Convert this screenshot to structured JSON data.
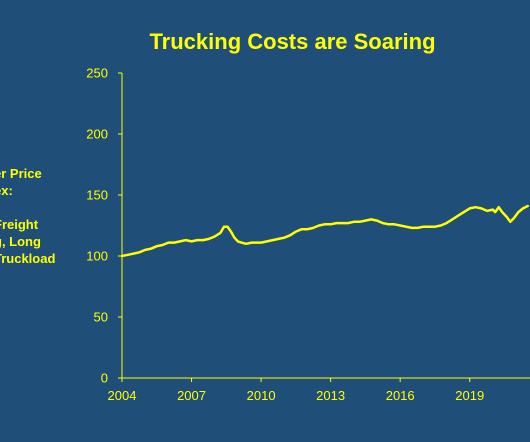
{
  "chart_data": {
    "type": "line",
    "title": "Trucking Costs are Soaring",
    "ylabel_lines": [
      "er Price",
      "ex:",
      "",
      " Freight",
      "g, Long",
      "Truckload"
    ],
    "xlabel": "",
    "x_tick_labels": [
      "2004",
      "2007",
      "2010",
      "2013",
      "2016",
      "2019"
    ],
    "y_tick_labels": [
      "0",
      "50",
      "100",
      "150",
      "200",
      "250"
    ],
    "xlim": [
      2004,
      2021.6
    ],
    "ylim": [
      0,
      250
    ],
    "grid": false,
    "legend": "none",
    "colors": {
      "background": "#1f4e79",
      "line": "#ffff00",
      "axis": "#ffff00",
      "text": "#ffff00"
    },
    "series": [
      {
        "x": [
          2004.0,
          2004.25,
          2004.5,
          2004.75,
          2005.0,
          2005.25,
          2005.5,
          2005.75,
          2006.0,
          2006.25,
          2006.5,
          2006.75,
          2007.0,
          2007.25,
          2007.5,
          2007.75,
          2008.0,
          2008.25,
          2008.4,
          2008.55,
          2008.7,
          2008.85,
          2009.0,
          2009.15,
          2009.35,
          2009.6,
          2009.85,
          2010.0,
          2010.25,
          2010.5,
          2010.75,
          2011.0,
          2011.25,
          2011.5,
          2011.75,
          2012.0,
          2012.25,
          2012.5,
          2012.75,
          2013.0,
          2013.25,
          2013.5,
          2013.75,
          2014.0,
          2014.25,
          2014.5,
          2014.75,
          2015.0,
          2015.25,
          2015.5,
          2015.75,
          2016.0,
          2016.25,
          2016.5,
          2016.75,
          2017.0,
          2017.25,
          2017.5,
          2017.75,
          2018.0,
          2018.25,
          2018.5,
          2018.75,
          2019.0,
          2019.25,
          2019.5,
          2019.75,
          2020.0,
          2020.1,
          2020.25,
          2020.4,
          2020.6,
          2020.75,
          2020.9,
          2021.1,
          2021.3,
          2021.5
        ],
        "y": [
          100,
          101,
          102,
          103,
          105,
          106,
          108,
          109,
          111,
          111,
          112,
          113,
          112,
          113,
          113,
          114,
          116,
          119,
          124,
          124,
          120,
          115,
          112,
          111,
          110,
          111,
          111,
          111,
          112,
          113,
          114,
          115,
          117,
          120,
          122,
          122,
          123,
          125,
          126,
          126,
          127,
          127,
          127,
          128,
          128,
          129,
          130,
          129,
          127,
          126,
          126,
          125,
          124,
          123,
          123,
          124,
          124,
          124,
          125,
          127,
          130,
          133,
          136,
          139,
          140,
          139,
          137,
          138,
          136,
          140,
          136,
          132,
          128,
          131,
          136,
          139,
          141
        ]
      }
    ]
  }
}
